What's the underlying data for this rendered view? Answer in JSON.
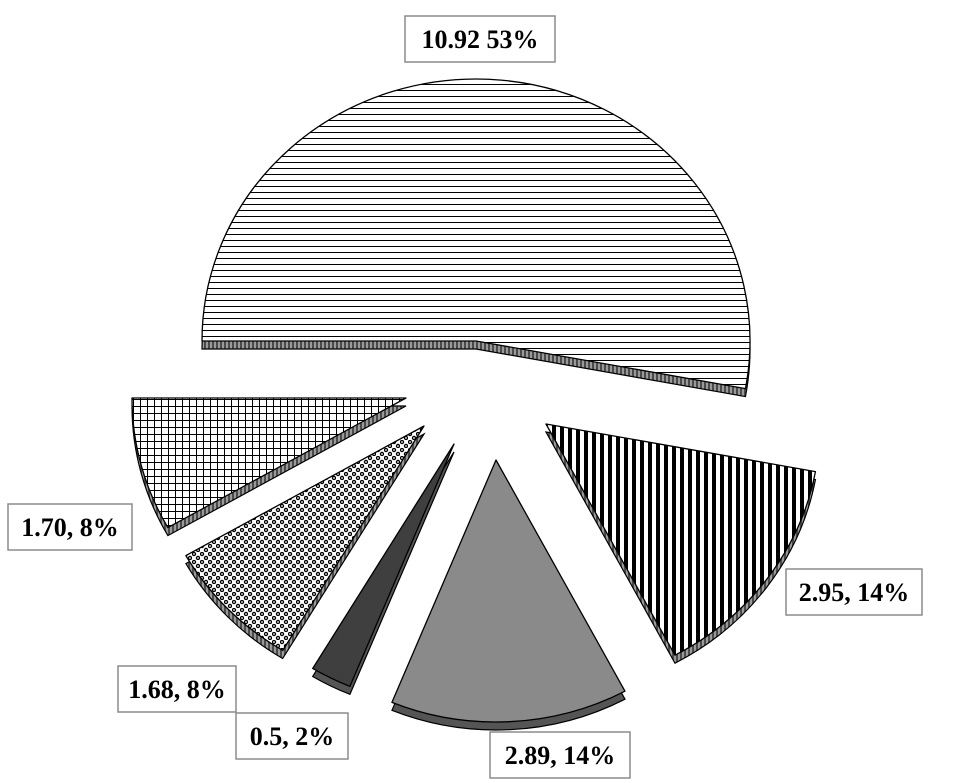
{
  "chart_data": {
    "type": "pie",
    "style": "3d-exploded",
    "title": "",
    "slices": [
      {
        "value": 10.92,
        "percent": "53%",
        "label": "10.92 53%",
        "fill": "h-lines"
      },
      {
        "value": 2.95,
        "percent": "14%",
        "label": "2.95, 14%",
        "fill": "v-lines"
      },
      {
        "value": 2.89,
        "percent": "14%",
        "label": "2.89, 14%",
        "fill": "solid-gray",
        "color": "#8a8a8a"
      },
      {
        "value": 0.5,
        "percent": "2%",
        "label": "0.5, 2%",
        "fill": "solid-dark",
        "color": "#3f3f3f"
      },
      {
        "value": 1.68,
        "percent": "8%",
        "label": "1.68, 8%",
        "fill": "checker-dots"
      },
      {
        "value": 1.7,
        "percent": "8%",
        "label": "1.70, 8%",
        "fill": "grid"
      }
    ],
    "legend": "none"
  }
}
